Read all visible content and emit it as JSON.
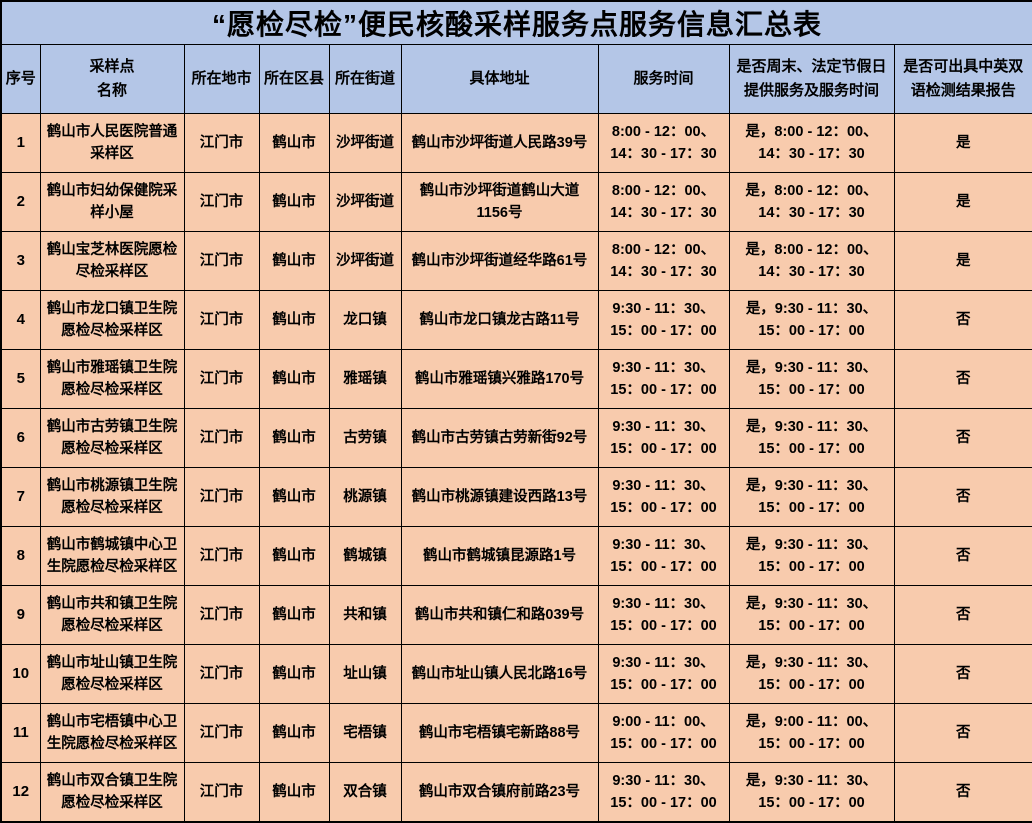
{
  "page": {
    "title": "“愿检尽检”便民核酸采样服务点服务信息汇总表"
  },
  "colors": {
    "title_bg": "#b4c6e7",
    "header_bg": "#b4c6e7",
    "row_bg": "#f8cbad",
    "border": "#000000",
    "text": "#000000"
  },
  "table": {
    "headers": [
      "序号",
      "采样点\n名称",
      "所在地市",
      "所在区县",
      "所在街道",
      "具体地址",
      "服务时间",
      "是否周末、法定节假日\n提供服务及服务时间",
      "是否可出具中英双\n语检测结果报告"
    ],
    "columns": [
      "no",
      "name",
      "city",
      "district",
      "street",
      "address",
      "hours",
      "weekend_service",
      "bilingual_report"
    ],
    "rows": [
      {
        "no": "1",
        "name": "鹤山市人民医院普通采样区",
        "city": "江门市",
        "district": "鹤山市",
        "street": "沙坪街道",
        "address": "鹤山市沙坪街道人民路39号",
        "hours": "8:00 - 12：00、\n14：30 - 17：30",
        "weekend_service": "是，8:00 - 12：00、\n14：30 - 17：30",
        "bilingual_report": "是"
      },
      {
        "no": "2",
        "name": "鹤山市妇幼保健院采样小屋",
        "city": "江门市",
        "district": "鹤山市",
        "street": "沙坪街道",
        "address": "鹤山市沙坪街道鹤山大道\n1156号",
        "hours": "8:00 - 12：00、\n14：30 - 17：30",
        "weekend_service": "是，8:00 - 12：00、\n14：30 - 17：30",
        "bilingual_report": "是"
      },
      {
        "no": "3",
        "name": "鹤山宝芝林医院愿检尽检采样区",
        "city": "江门市",
        "district": "鹤山市",
        "street": "沙坪街道",
        "address": "鹤山市沙坪街道经华路61号",
        "hours": "8:00 - 12：00、\n14：30 - 17：30",
        "weekend_service": "是，8:00 - 12：00、\n14：30 - 17：30",
        "bilingual_report": "是"
      },
      {
        "no": "4",
        "name": "鹤山市龙口镇卫生院愿检尽检采样区",
        "city": "江门市",
        "district": "鹤山市",
        "street": "龙口镇",
        "address": "鹤山市龙口镇龙古路11号",
        "hours": "9:30 - 11：30、\n15：00 - 17：00",
        "weekend_service": "是，9:30 - 11：30、\n15：00 - 17：00",
        "bilingual_report": "否"
      },
      {
        "no": "5",
        "name": "鹤山市雅瑶镇卫生院愿检尽检采样区",
        "city": "江门市",
        "district": "鹤山市",
        "street": "雅瑶镇",
        "address": "鹤山市雅瑶镇兴雅路170号",
        "hours": "9:30 - 11：30、\n15：00 - 17：00",
        "weekend_service": "是，9:30 - 11：30、\n15：00 - 17：00",
        "bilingual_report": "否"
      },
      {
        "no": "6",
        "name": "鹤山市古劳镇卫生院愿检尽检采样区",
        "city": "江门市",
        "district": "鹤山市",
        "street": "古劳镇",
        "address": "鹤山市古劳镇古劳新街92号",
        "hours": "9:30 - 11：30、\n15：00 - 17：00",
        "weekend_service": "是，9:30 - 11：30、\n15：00 - 17：00",
        "bilingual_report": "否"
      },
      {
        "no": "7",
        "name": "鹤山市桃源镇卫生院愿检尽检采样区",
        "city": "江门市",
        "district": "鹤山市",
        "street": "桃源镇",
        "address": "鹤山市桃源镇建设西路13号",
        "hours": "9:30 - 11：30、\n15：00 - 17：00",
        "weekend_service": "是，9:30 - 11：30、\n15：00 - 17：00",
        "bilingual_report": "否"
      },
      {
        "no": "8",
        "name": "鹤山市鹤城镇中心卫生院愿检尽检采样区",
        "city": "江门市",
        "district": "鹤山市",
        "street": "鹤城镇",
        "address": "鹤山市鹤城镇昆源路1号",
        "hours": "9:30 - 11：30、\n15：00 - 17：00",
        "weekend_service": "是，9:30 - 11：30、\n15：00 - 17：00",
        "bilingual_report": "否"
      },
      {
        "no": "9",
        "name": "鹤山市共和镇卫生院愿检尽检采样区",
        "city": "江门市",
        "district": "鹤山市",
        "street": "共和镇",
        "address": "鹤山市共和镇仁和路039号",
        "hours": "9:30 - 11：30、\n15：00 - 17：00",
        "weekend_service": "是，9:30 - 11：30、\n15：00 - 17：00",
        "bilingual_report": "否"
      },
      {
        "no": "10",
        "name": "鹤山市址山镇卫生院愿检尽检采样区",
        "city": "江门市",
        "district": "鹤山市",
        "street": "址山镇",
        "address": "鹤山市址山镇人民北路16号",
        "hours": "9:30 - 11：30、\n15：00 - 17：00",
        "weekend_service": "是，9:30 - 11：30、\n15：00 - 17：00",
        "bilingual_report": "否"
      },
      {
        "no": "11",
        "name": "鹤山市宅梧镇中心卫生院愿检尽检采样区",
        "city": "江门市",
        "district": "鹤山市",
        "street": "宅梧镇",
        "address": "鹤山市宅梧镇宅新路88号",
        "hours": "9:00 - 11：00、\n15：00 - 17：00",
        "weekend_service": "是，9:00 - 11：00、\n15：00 - 17：00",
        "bilingual_report": "否"
      },
      {
        "no": "12",
        "name": "鹤山市双合镇卫生院愿检尽检采样区",
        "city": "江门市",
        "district": "鹤山市",
        "street": "双合镇",
        "address": "鹤山市双合镇府前路23号",
        "hours": "9:30 - 11：30、\n15：00 - 17：00",
        "weekend_service": "是，9:30 - 11：30、\n15：00 - 17：00",
        "bilingual_report": "否"
      }
    ]
  }
}
